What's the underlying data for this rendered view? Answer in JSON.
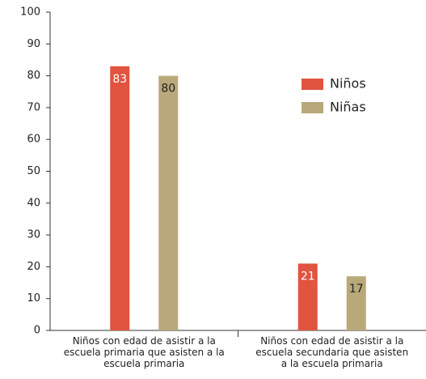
{
  "chart_data": {
    "type": "bar",
    "categories": [
      "Niños con edad de asistir a la escuela primaria que asisten a la escuela primaria",
      "Niños con edad de asistir a la escuela secundaria que asisten a la escuela primaria"
    ],
    "series": [
      {
        "name": "Niños",
        "color": "#e05440",
        "values": [
          83,
          21
        ]
      },
      {
        "name": "Niñas",
        "color": "#b9a87a",
        "values": [
          80,
          17
        ]
      }
    ],
    "ylim": [
      0,
      100
    ],
    "yticks": [
      0,
      10,
      20,
      30,
      40,
      50,
      60,
      70,
      80,
      90,
      100
    ]
  }
}
